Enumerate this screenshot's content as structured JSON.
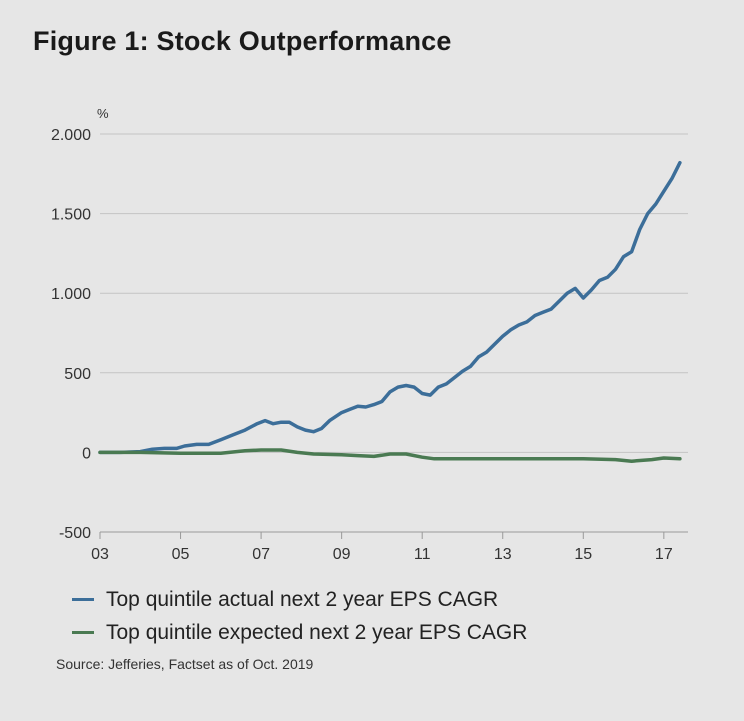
{
  "chart_data": {
    "type": "line",
    "title": "Figure 1: Stock Outperformance",
    "ylabel": "%",
    "xlabel": "",
    "ylim": [
      -500,
      2000
    ],
    "xlim": [
      2003,
      2017.6
    ],
    "y_ticks": [
      -500,
      0,
      500,
      1000,
      1500,
      2000
    ],
    "y_tick_labels": [
      "-500",
      "0",
      "500",
      "1.000",
      "1.500",
      "2.000"
    ],
    "x_ticks": [
      2003,
      2005,
      2007,
      2009,
      2011,
      2013,
      2015,
      2017
    ],
    "x_tick_labels": [
      "03",
      "05",
      "07",
      "09",
      "11",
      "13",
      "15",
      "17"
    ],
    "grid": "horizontal",
    "legend_position": "bottom",
    "series": [
      {
        "name": "Top quintile actual next 2 year EPS CAGR",
        "color": "#3c6e99",
        "x": [
          2003.0,
          2003.5,
          2004.0,
          2004.3,
          2004.6,
          2004.9,
          2005.1,
          2005.4,
          2005.7,
          2006.0,
          2006.3,
          2006.6,
          2006.9,
          2007.1,
          2007.3,
          2007.5,
          2007.7,
          2007.9,
          2008.1,
          2008.3,
          2008.5,
          2008.7,
          2009.0,
          2009.2,
          2009.4,
          2009.6,
          2009.8,
          2010.0,
          2010.2,
          2010.4,
          2010.6,
          2010.8,
          2011.0,
          2011.2,
          2011.4,
          2011.6,
          2011.8,
          2012.0,
          2012.2,
          2012.4,
          2012.6,
          2012.8,
          2013.0,
          2013.2,
          2013.4,
          2013.6,
          2013.8,
          2014.0,
          2014.2,
          2014.4,
          2014.6,
          2014.8,
          2015.0,
          2015.2,
          2015.4,
          2015.6,
          2015.8,
          2016.0,
          2016.2,
          2016.4,
          2016.6,
          2016.8,
          2017.0,
          2017.2,
          2017.4
        ],
        "values": [
          0,
          0,
          5,
          20,
          25,
          25,
          40,
          50,
          50,
          80,
          110,
          140,
          180,
          200,
          180,
          190,
          190,
          160,
          140,
          130,
          150,
          200,
          250,
          270,
          290,
          285,
          300,
          320,
          380,
          410,
          420,
          410,
          370,
          360,
          410,
          430,
          470,
          510,
          540,
          600,
          630,
          680,
          730,
          770,
          800,
          820,
          860,
          880,
          900,
          950,
          1000,
          1030,
          970,
          1020,
          1080,
          1100,
          1150,
          1230,
          1260,
          1400,
          1500,
          1560,
          1640,
          1720,
          1820
        ]
      },
      {
        "name": "Top quintile expected next 2 year EPS CAGR",
        "color": "#4a7a52",
        "x": [
          2003.0,
          2004.0,
          2005.0,
          2006.0,
          2006.6,
          2007.0,
          2007.5,
          2007.9,
          2008.3,
          2009.0,
          2009.4,
          2009.8,
          2010.2,
          2010.6,
          2011.0,
          2011.3,
          2012.0,
          2013.0,
          2014.0,
          2015.0,
          2015.8,
          2016.2,
          2016.7,
          2017.0,
          2017.4
        ],
        "values": [
          0,
          0,
          -5,
          -5,
          10,
          15,
          15,
          0,
          -10,
          -15,
          -20,
          -25,
          -10,
          -10,
          -30,
          -40,
          -40,
          -40,
          -40,
          -40,
          -45,
          -55,
          -45,
          -35,
          -40
        ]
      }
    ]
  },
  "source": "Source: Jefferies, Factset as of Oct. 2019"
}
